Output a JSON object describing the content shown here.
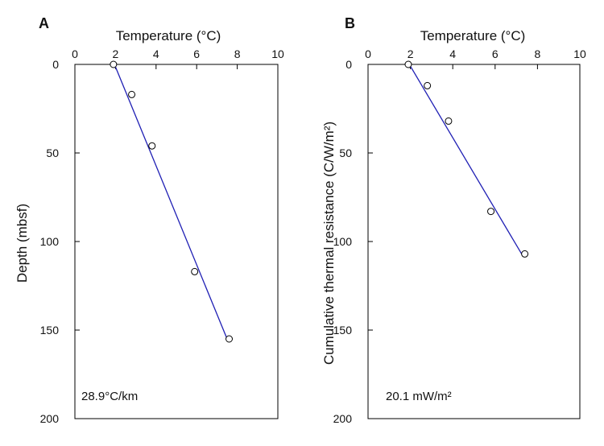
{
  "chart_data": [
    {
      "type": "scatter",
      "panel_label": "A",
      "xlabel": "Temperature (°C)",
      "ylabel": "Depth (mbsf)",
      "x_ticks": [
        0,
        2,
        4,
        6,
        8,
        10
      ],
      "y_ticks": [
        0,
        50,
        100,
        150,
        200
      ],
      "xlim": [
        0,
        10
      ],
      "ylim": [
        0,
        200
      ],
      "y_inverted": true,
      "x_axis_position": "top",
      "grid": false,
      "points": [
        {
          "x": 1.9,
          "y": 0
        },
        {
          "x": 2.8,
          "y": 17
        },
        {
          "x": 3.8,
          "y": 46
        },
        {
          "x": 5.9,
          "y": 117
        },
        {
          "x": 7.6,
          "y": 155
        }
      ],
      "fit_line": {
        "x": [
          1.95,
          7.5
        ],
        "y": [
          0,
          155
        ],
        "color": "#1f1fb4"
      },
      "annotation": "28.9°C/km",
      "point_color": "#000000"
    },
    {
      "type": "scatter",
      "panel_label": "B",
      "xlabel": "Temperature (°C)",
      "ylabel": "Cumulative thermal resistance (C/W/m²)",
      "x_ticks": [
        0,
        2,
        4,
        6,
        8,
        10
      ],
      "y_ticks": [
        0,
        50,
        100,
        150,
        200
      ],
      "xlim": [
        0,
        10
      ],
      "ylim": [
        0,
        200
      ],
      "y_inverted": true,
      "x_axis_position": "top",
      "grid": false,
      "points": [
        {
          "x": 1.9,
          "y": 0
        },
        {
          "x": 2.8,
          "y": 12
        },
        {
          "x": 3.8,
          "y": 32
        },
        {
          "x": 5.8,
          "y": 83
        },
        {
          "x": 7.4,
          "y": 107
        }
      ],
      "fit_line": {
        "x": [
          1.95,
          7.3
        ],
        "y": [
          0,
          108
        ],
        "color": "#1f1fb4"
      },
      "annotation": "20.1 mW/m²",
      "point_color": "#000000"
    }
  ]
}
